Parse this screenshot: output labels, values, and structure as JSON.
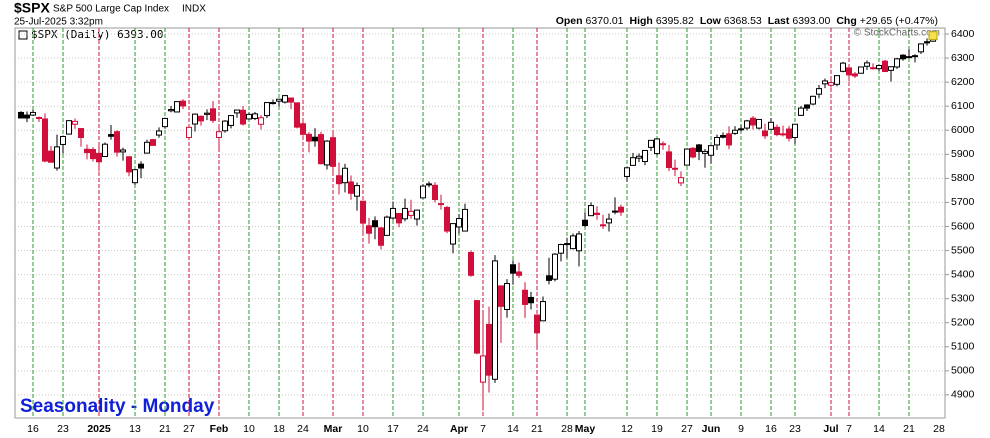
{
  "chart_data": {
    "type": "candlestick",
    "symbol": "$SPX",
    "name": "S&P 500 Large Cap Index",
    "exchange": "INDX",
    "timestamp": "25-Jul-2025 3:32pm",
    "quote": [
      {
        "label": "Open",
        "value": "6370.01"
      },
      {
        "label": "High",
        "value": "6395.82"
      },
      {
        "label": "Low",
        "value": "6368.53"
      },
      {
        "label": "Last",
        "value": "6393.00"
      },
      {
        "label": "Chg",
        "value": "+29.65 (+0.47%)"
      }
    ],
    "copyright": "© StockCharts.com",
    "legend": "$SPX (Daily) 6393.00",
    "annotation": "Seasonality - Monday",
    "up_color": "#000000",
    "down_color": "#d0103a",
    "monday_up_color": "#2a9a2a",
    "monday_down_color": "#d0103a",
    "last_marker_color": "#f5e050",
    "grid": true,
    "ylim": [
      4804,
      6425
    ],
    "yticks": [
      4900,
      5000,
      5100,
      5200,
      5300,
      5400,
      5500,
      5600,
      5700,
      5800,
      5900,
      6000,
      6100,
      6200,
      6300,
      6400
    ],
    "categories": [
      null,
      null,
      "16",
      null,
      null,
      null,
      null,
      "23",
      null,
      null,
      null,
      null,
      null,
      "2025",
      null,
      null,
      null,
      null,
      null,
      "13",
      null,
      null,
      null,
      null,
      "21",
      null,
      null,
      null,
      "27",
      null,
      null,
      null,
      null,
      "Feb",
      null,
      null,
      null,
      null,
      "10",
      null,
      null,
      null,
      null,
      "18",
      null,
      null,
      null,
      "24",
      null,
      null,
      null,
      null,
      "Mar",
      null,
      null,
      null,
      null,
      "10",
      null,
      null,
      null,
      null,
      "17",
      null,
      null,
      null,
      null,
      "24",
      null,
      null,
      null,
      null,
      null,
      "Apr",
      null,
      null,
      null,
      "7",
      null,
      null,
      null,
      null,
      "14",
      null,
      null,
      null,
      "21",
      null,
      null,
      null,
      null,
      "28",
      null,
      null,
      "May",
      null,
      null,
      null,
      null,
      null,
      null,
      "12",
      null,
      null,
      null,
      null,
      "19",
      null,
      null,
      null,
      null,
      "27",
      null,
      null,
      null,
      "Jun",
      null,
      null,
      null,
      null,
      "9",
      null,
      null,
      null,
      null,
      "16",
      null,
      null,
      null,
      "23",
      null,
      null,
      null,
      null,
      null,
      "Jul",
      null,
      null,
      "7",
      null,
      null,
      null,
      null,
      "14",
      null,
      null,
      null,
      null,
      "21",
      null,
      null,
      null,
      null,
      "28"
    ],
    "ohlc": [
      [
        6074,
        6079,
        6051,
        6051
      ],
      [
        6063,
        6078,
        6034,
        6051
      ],
      [
        6063,
        6085,
        6059,
        6074
      ],
      [
        6053,
        6057,
        6035,
        6050
      ],
      [
        6047,
        6070,
        5867,
        5872
      ],
      [
        5913,
        5935,
        5866,
        5867
      ],
      [
        5843,
        5982,
        5832,
        5931
      ],
      [
        5941,
        5978,
        5903,
        5974
      ],
      [
        5984,
        6040,
        5983,
        6040
      ],
      [
        6025,
        6049,
        6006,
        6037
      ],
      [
        6007,
        6007,
        5932,
        5970
      ],
      [
        5921,
        5941,
        5879,
        5907
      ],
      [
        5920,
        5930,
        5870,
        5882
      ],
      [
        5904,
        5949,
        5829,
        5869
      ],
      [
        5891,
        5949,
        5889,
        5942
      ],
      [
        5982,
        6022,
        5961,
        5975
      ],
      [
        5994,
        6000,
        5891,
        5909
      ],
      [
        5910,
        5928,
        5874,
        5918
      ],
      [
        5890,
        5891,
        5809,
        5827
      ],
      [
        5782,
        5838,
        5773,
        5836
      ],
      [
        5859,
        5871,
        5801,
        5843
      ],
      [
        5905,
        5961,
        5905,
        5950
      ],
      [
        5961,
        5964,
        5936,
        5937
      ],
      [
        5980,
        6012,
        5969,
        5997
      ],
      [
        6015,
        6052,
        6006,
        6049
      ],
      [
        6081,
        6101,
        6075,
        6086
      ],
      [
        6076,
        6119,
        6074,
        6119
      ],
      [
        6121,
        6129,
        6088,
        6101
      ],
      [
        5970,
        6018,
        5962,
        6012
      ],
      [
        6026,
        6070,
        5995,
        6067
      ],
      [
        6058,
        6062,
        6019,
        6039
      ],
      [
        6066,
        6087,
        6042,
        6071
      ],
      [
        6089,
        6121,
        6030,
        6041
      ],
      [
        5970,
        6023,
        5924,
        5994
      ],
      [
        5998,
        6042,
        5990,
        6038
      ],
      [
        6020,
        6062,
        6008,
        6061
      ],
      [
        6072,
        6084,
        6052,
        6084
      ],
      [
        6083,
        6101,
        6020,
        6026
      ],
      [
        6047,
        6073,
        6044,
        6066
      ],
      [
        6049,
        6076,
        6042,
        6068
      ],
      [
        6025,
        6063,
        6003,
        6052
      ],
      [
        6061,
        6116,
        6051,
        6115
      ],
      [
        6115,
        6128,
        6107,
        6115
      ],
      [
        6121,
        6129,
        6100,
        6129
      ],
      [
        6117,
        6147,
        6111,
        6144
      ],
      [
        6134,
        6135,
        6088,
        6117
      ],
      [
        6114,
        6115,
        6008,
        6013
      ],
      [
        6027,
        6044,
        5977,
        5983
      ],
      [
        5983,
        5992,
        5908,
        5955
      ],
      [
        5971,
        6009,
        5932,
        5956
      ],
      [
        5982,
        5994,
        5858,
        5861
      ],
      [
        5856,
        5959,
        5837,
        5955
      ],
      [
        5969,
        5987,
        5810,
        5850
      ],
      [
        5811,
        5866,
        5733,
        5778
      ],
      [
        5782,
        5860,
        5742,
        5842
      ],
      [
        5785,
        5812,
        5711,
        5738
      ],
      [
        5726,
        5783,
        5666,
        5770
      ],
      [
        5705,
        5706,
        5565,
        5614
      ],
      [
        5603,
        5636,
        5529,
        5572
      ],
      [
        5624,
        5642,
        5547,
        5599
      ],
      [
        5594,
        5598,
        5505,
        5522
      ],
      [
        5563,
        5645,
        5563,
        5639
      ],
      [
        5635,
        5704,
        5628,
        5675
      ],
      [
        5654,
        5654,
        5597,
        5615
      ],
      [
        5632,
        5716,
        5622,
        5675
      ],
      [
        5646,
        5711,
        5632,
        5663
      ],
      [
        5631,
        5670,
        5604,
        5668
      ],
      [
        5719,
        5775,
        5718,
        5768
      ],
      [
        5776,
        5787,
        5763,
        5777
      ],
      [
        5771,
        5784,
        5700,
        5712
      ],
      [
        5695,
        5732,
        5670,
        5693
      ],
      [
        5679,
        5685,
        5572,
        5581
      ],
      [
        5527,
        5613,
        5488,
        5612
      ],
      [
        5598,
        5651,
        5570,
        5633
      ],
      [
        5581,
        5695,
        5579,
        5671
      ],
      [
        5492,
        5500,
        5391,
        5397
      ],
      [
        5292,
        5292,
        5069,
        5074
      ],
      [
        4953,
        5246,
        4835,
        5062
      ],
      [
        5193,
        5267,
        4910,
        4982
      ],
      [
        4965,
        5481,
        4950,
        5457
      ],
      [
        5353,
        5353,
        5116,
        5268
      ],
      [
        5255,
        5381,
        5221,
        5363
      ],
      [
        5441,
        5459,
        5358,
        5406
      ],
      [
        5411,
        5450,
        5386,
        5397
      ],
      [
        5335,
        5368,
        5220,
        5276
      ],
      [
        5305,
        5328,
        5255,
        5283
      ],
      [
        5232,
        5232,
        5101,
        5158
      ],
      [
        5208,
        5309,
        5208,
        5288
      ],
      [
        5395,
        5470,
        5360,
        5376
      ],
      [
        5381,
        5489,
        5372,
        5485
      ],
      [
        5489,
        5528,
        5455,
        5525
      ],
      [
        5529,
        5553,
        5468,
        5529
      ],
      [
        5508,
        5571,
        5505,
        5561
      ],
      [
        5499,
        5581,
        5434,
        5569
      ],
      [
        5626,
        5659,
        5597,
        5604
      ],
      [
        5645,
        5700,
        5644,
        5687
      ],
      [
        5655,
        5684,
        5628,
        5650
      ],
      [
        5606,
        5649,
        5590,
        5607
      ],
      [
        5615,
        5654,
        5579,
        5631
      ],
      [
        5663,
        5721,
        5651,
        5664
      ],
      [
        5680,
        5691,
        5644,
        5660
      ],
      [
        5808,
        5845,
        5786,
        5844
      ],
      [
        5854,
        5906,
        5853,
        5886
      ],
      [
        5884,
        5904,
        5868,
        5892
      ],
      [
        5870,
        5917,
        5855,
        5916
      ],
      [
        5929,
        5958,
        5914,
        5958
      ],
      [
        5903,
        5968,
        5895,
        5964
      ],
      [
        5944,
        5954,
        5919,
        5940
      ],
      [
        5910,
        5939,
        5830,
        5845
      ],
      [
        5842,
        5878,
        5810,
        5842
      ],
      [
        5781,
        5829,
        5768,
        5803
      ],
      [
        5855,
        5923,
        5854,
        5922
      ],
      [
        5925,
        5930,
        5883,
        5889
      ],
      [
        5939,
        5943,
        5876,
        5912
      ],
      [
        5904,
        5922,
        5844,
        5912
      ],
      [
        5896,
        5937,
        5862,
        5936
      ],
      [
        5939,
        5982,
        5918,
        5970
      ],
      [
        5978,
        5991,
        5966,
        5971
      ],
      [
        5985,
        6016,
        5921,
        5939
      ],
      [
        5987,
        6017,
        5981,
        6000
      ],
      [
        6004,
        6021,
        5995,
        6006
      ],
      [
        6009,
        6043,
        6000,
        6039
      ],
      [
        6050,
        6059,
        6003,
        6022
      ],
      [
        6009,
        6046,
        6003,
        6045
      ],
      [
        5997,
        6027,
        5964,
        5977
      ],
      [
        6004,
        6051,
        6004,
        6033
      ],
      [
        6012,
        6024,
        5975,
        5982
      ],
      [
        5985,
        6019,
        5974,
        5981
      ],
      [
        6005,
        6018,
        5953,
        5967
      ],
      [
        5970,
        6025,
        5944,
        6025
      ],
      [
        6062,
        6101,
        6060,
        6092
      ],
      [
        6105,
        6108,
        6080,
        6092
      ],
      [
        6109,
        6144,
        6104,
        6141
      ],
      [
        6150,
        6188,
        6133,
        6173
      ],
      [
        6193,
        6215,
        6175,
        6205
      ],
      [
        6187,
        6210,
        6177,
        6198
      ],
      [
        6191,
        6227,
        6183,
        6227
      ],
      [
        6245,
        6284,
        6241,
        6279
      ],
      [
        6259,
        6263,
        6203,
        6230
      ],
      [
        6234,
        6242,
        6217,
        6226
      ],
      [
        6237,
        6264,
        6237,
        6263
      ],
      [
        6266,
        6290,
        6251,
        6280
      ],
      [
        6256,
        6278,
        6252,
        6260
      ],
      [
        6256,
        6273,
        6246,
        6269
      ],
      [
        6287,
        6292,
        6244,
        6244
      ],
      [
        6249,
        6266,
        6202,
        6264
      ],
      [
        6263,
        6301,
        6255,
        6297
      ],
      [
        6312,
        6316,
        6289,
        6297
      ],
      [
        6305,
        6336,
        6303,
        6306
      ],
      [
        6306,
        6316,
        6282,
        6310
      ],
      [
        6326,
        6360,
        6317,
        6359
      ],
      [
        6368,
        6382,
        6352,
        6363
      ],
      [
        6370.01,
        6395.82,
        6368.53,
        6393
      ],
      null
    ]
  }
}
